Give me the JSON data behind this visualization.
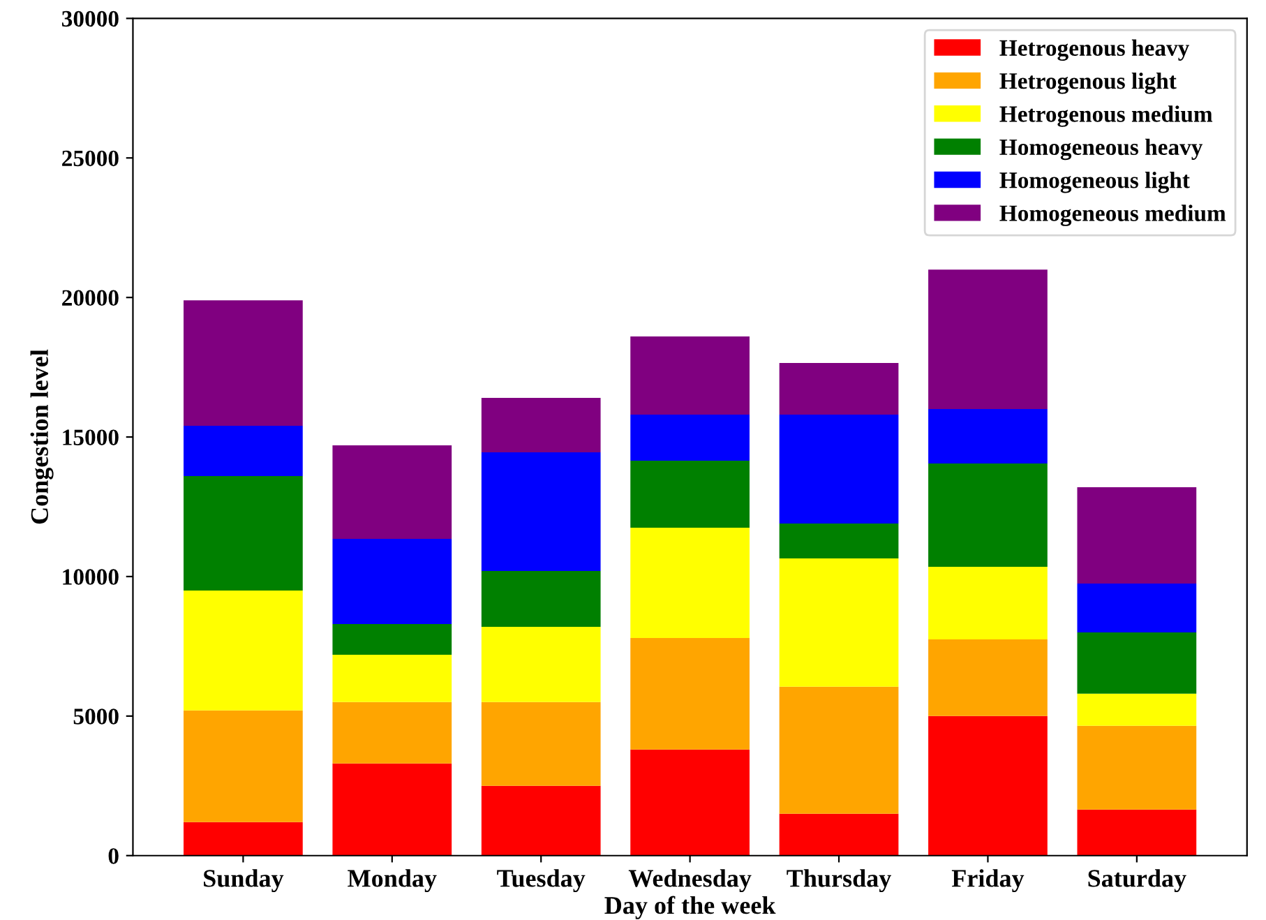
{
  "chart_data": {
    "type": "bar",
    "stacked": true,
    "xlabel": "Day of the week",
    "ylabel": "Congestion level",
    "categories": [
      "Sunday",
      "Monday",
      "Tuesday",
      "Wednesday",
      "Thursday",
      "Friday",
      "Saturday"
    ],
    "series": [
      {
        "name": "Hetrogenous heavy",
        "color": "#ff0000",
        "values": [
          1200,
          3300,
          2500,
          3800,
          1500,
          5000,
          1650
        ]
      },
      {
        "name": "Hetrogenous light",
        "color": "#ffa500",
        "values": [
          4000,
          2200,
          3000,
          4000,
          4550,
          2750,
          3000
        ]
      },
      {
        "name": "Hetrogenous medium",
        "color": "#ffff00",
        "values": [
          4300,
          1700,
          2700,
          3950,
          4600,
          2600,
          1150
        ]
      },
      {
        "name": "Homogeneous heavy",
        "color": "#008000",
        "values": [
          4100,
          1100,
          2000,
          2400,
          1250,
          3700,
          2200
        ]
      },
      {
        "name": "Homogeneous light",
        "color": "#0000ff",
        "values": [
          1800,
          3050,
          4250,
          1650,
          3900,
          1950,
          1750
        ]
      },
      {
        "name": "Homogeneous medium",
        "color": "#800080",
        "values": [
          4500,
          3350,
          1950,
          2800,
          1850,
          5000,
          3450
        ]
      }
    ],
    "ylim": [
      0,
      30000
    ],
    "yticks": [
      0,
      5000,
      10000,
      15000,
      20000,
      25000,
      30000
    ],
    "grid": false,
    "legend": "top right"
  }
}
